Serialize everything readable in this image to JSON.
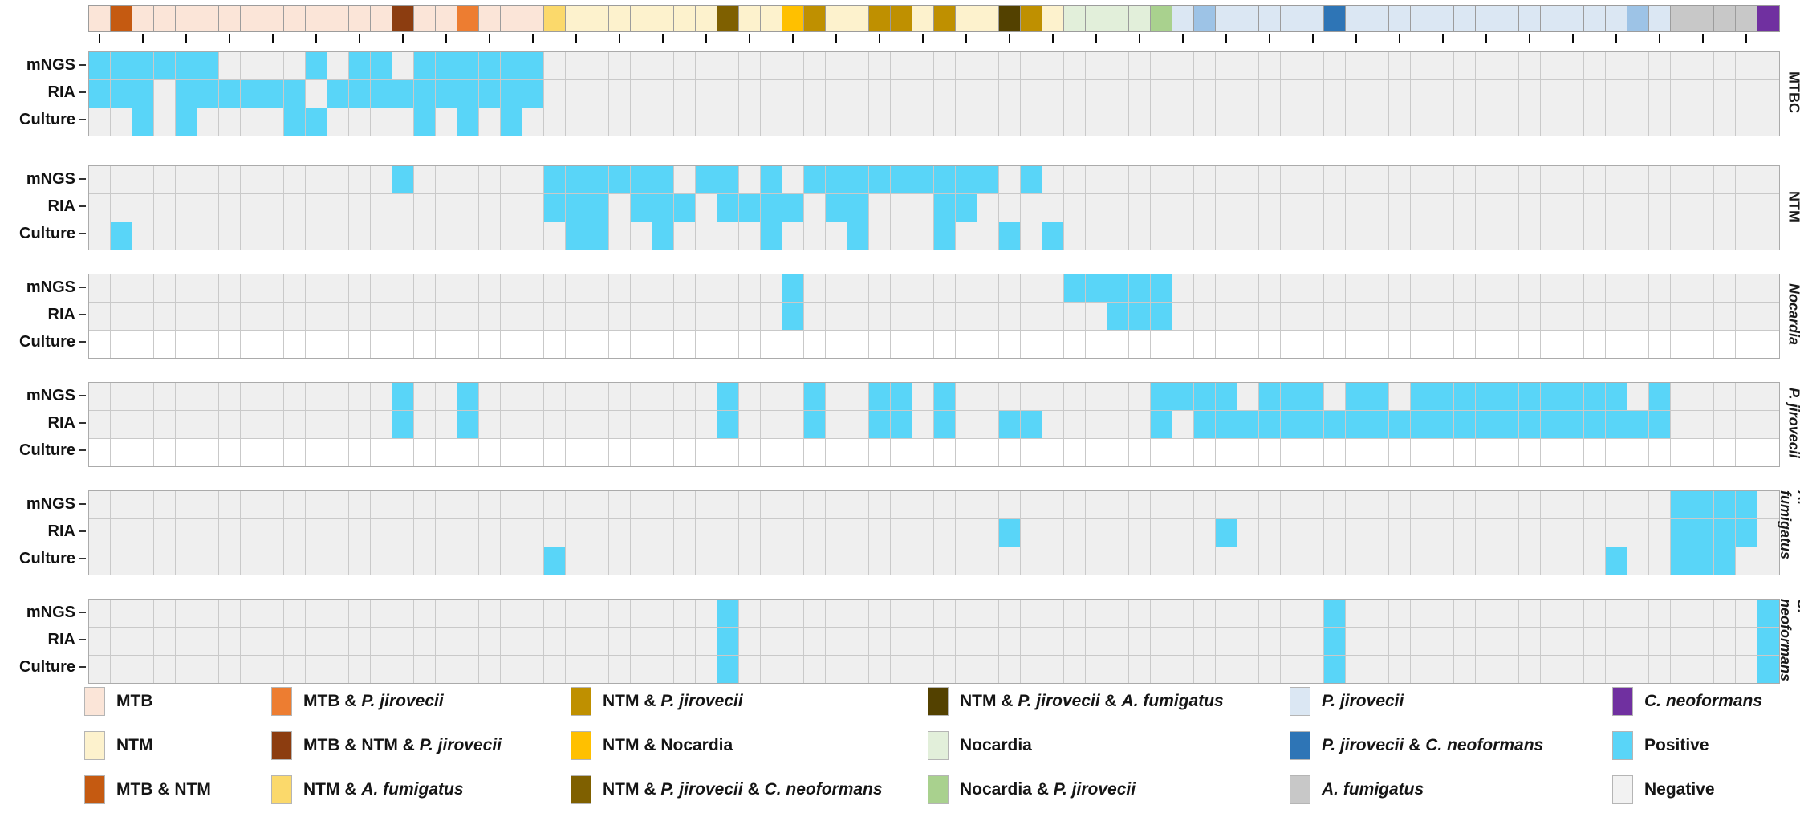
{
  "figure": {
    "background": "#ffffff"
  },
  "chart_data": {
    "type": "heatmap",
    "n_samples": 78,
    "row_labels": [
      "mNGS",
      "RIA",
      "Culture"
    ],
    "cell_states": {
      "positive": 1,
      "negative": 0,
      "not_tested": "blank"
    },
    "colors": {
      "positive": "#59d5f8",
      "negative": "#efefef",
      "not_tested": "#ffffff",
      "grid_line": "#c9c9c9",
      "panel_border": "#ababab",
      "tick": "#0a0a0a"
    },
    "palette": {
      "mtb": "#fbe5d8",
      "ntm": "#fdf2cd",
      "mtb_ntm": "#c55a11",
      "mtb_pj": "#ed7d31",
      "mtb_ntm_pj": "#8c3d10",
      "ntm_af": "#fbd96b",
      "ntm_pj": "#bf9000",
      "ntm_noc": "#ffc000",
      "ntm_pj_cn": "#7f6000",
      "ntm_pj_af": "#534100",
      "noc": "#e2efda",
      "noc_pj": "#a9d18e",
      "pj": "#dbe7f3",
      "pj_med": "#9dc3e6",
      "pj_cn": "#2e75b6",
      "af": "#c8c8c8",
      "cn": "#7030a0",
      "positive": "#59d5f8",
      "negative": "#f2f2f2"
    },
    "category_bar": [
      "mtb",
      "mtb_ntm",
      "mtb",
      "mtb",
      "mtb",
      "mtb",
      "mtb",
      "mtb",
      "mtb",
      "mtb",
      "mtb",
      "mtb",
      "mtb",
      "mtb",
      "mtb_ntm_pj",
      "mtb",
      "mtb",
      "mtb_pj",
      "mtb",
      "mtb",
      "mtb",
      "ntm_af",
      "ntm",
      "ntm",
      "ntm",
      "ntm",
      "ntm",
      "ntm",
      "ntm",
      "ntm_pj_cn",
      "ntm",
      "ntm",
      "ntm_noc",
      "ntm_pj",
      "ntm",
      "ntm",
      "ntm_pj",
      "ntm_pj",
      "ntm",
      "ntm_pj",
      "ntm",
      "ntm",
      "ntm_pj_af",
      "ntm_pj",
      "ntm",
      "noc",
      "noc",
      "noc",
      "noc",
      "noc_pj",
      "pj",
      "pj_med",
      "pj",
      "pj",
      "pj",
      "pj",
      "pj",
      "pj_cn",
      "pj",
      "pj",
      "pj",
      "pj",
      "pj",
      "pj",
      "pj",
      "pj",
      "pj",
      "pj",
      "pj",
      "pj",
      "pj",
      "pj_med",
      "pj",
      "af",
      "af",
      "af",
      "af",
      "cn"
    ],
    "panels": [
      {
        "id": "mtbc",
        "label": "MTBC",
        "italic": false,
        "rows": [
          {
            "label": "mNGS",
            "positives": [
              1,
              2,
              3,
              4,
              5,
              6,
              11,
              13,
              14,
              16,
              17,
              18,
              19,
              20,
              21
            ],
            "not_tested": false
          },
          {
            "label": "RIA",
            "positives": [
              1,
              2,
              3,
              5,
              6,
              7,
              8,
              9,
              10,
              12,
              13,
              14,
              15,
              16,
              17,
              18,
              19,
              20,
              21
            ],
            "not_tested": false
          },
          {
            "label": "Culture",
            "positives": [
              3,
              5,
              10,
              11,
              16,
              18,
              20
            ],
            "not_tested": false
          }
        ]
      },
      {
        "id": "ntm",
        "label": "NTM",
        "italic": false,
        "rows": [
          {
            "label": "mNGS",
            "positives": [
              15,
              22,
              23,
              24,
              25,
              26,
              27,
              29,
              30,
              32,
              34,
              35,
              36,
              37,
              38,
              39,
              40,
              41,
              42,
              44
            ],
            "not_tested": false
          },
          {
            "label": "RIA",
            "positives": [
              22,
              23,
              24,
              26,
              27,
              28,
              30,
              31,
              32,
              33,
              35,
              36,
              40,
              41
            ],
            "not_tested": false
          },
          {
            "label": "Culture",
            "positives": [
              2,
              23,
              24,
              27,
              32,
              36,
              40,
              43,
              45
            ],
            "not_tested": false
          }
        ]
      },
      {
        "id": "nocardia",
        "label": "Nocardia",
        "italic": true,
        "rows": [
          {
            "label": "mNGS",
            "positives": [
              33,
              46,
              47,
              48,
              49,
              50
            ],
            "not_tested": false
          },
          {
            "label": "RIA",
            "positives": [
              33,
              48,
              49,
              50
            ],
            "not_tested": false
          },
          {
            "label": "Culture",
            "positives": [],
            "not_tested": true
          }
        ]
      },
      {
        "id": "p-jirovecii",
        "label": "P. jirovecii",
        "italic": true,
        "rows": [
          {
            "label": "mNGS",
            "positives": [
              15,
              18,
              30,
              34,
              37,
              38,
              40,
              50,
              51,
              52,
              53,
              55,
              56,
              57,
              59,
              60,
              62,
              63,
              64,
              65,
              66,
              67,
              68,
              69,
              70,
              71,
              73
            ],
            "not_tested": false
          },
          {
            "label": "RIA",
            "positives": [
              15,
              18,
              30,
              34,
              37,
              38,
              40,
              43,
              44,
              50,
              52,
              53,
              54,
              55,
              56,
              57,
              58,
              59,
              60,
              61,
              62,
              63,
              64,
              65,
              66,
              67,
              68,
              69,
              70,
              71,
              72,
              73
            ],
            "not_tested": false
          },
          {
            "label": "Culture",
            "positives": [],
            "not_tested": true
          }
        ]
      },
      {
        "id": "a-fumigatus",
        "label": "A. fumigatus",
        "italic": true,
        "rows": [
          {
            "label": "mNGS",
            "positives": [
              74,
              75,
              76,
              77
            ],
            "not_tested": false
          },
          {
            "label": "RIA",
            "positives": [
              43,
              53,
              74,
              75,
              76,
              77
            ],
            "not_tested": false
          },
          {
            "label": "Culture",
            "positives": [
              22,
              71,
              74,
              75,
              76
            ],
            "not_tested": false
          }
        ]
      },
      {
        "id": "c-neoformans",
        "label": "C. neoformans",
        "italic": true,
        "rows": [
          {
            "label": "mNGS",
            "positives": [
              30,
              58,
              78
            ],
            "not_tested": false
          },
          {
            "label": "RIA",
            "positives": [
              30,
              58,
              78
            ],
            "not_tested": false
          },
          {
            "label": "Culture",
            "positives": [
              30,
              58,
              78
            ],
            "not_tested": false
          }
        ]
      }
    ],
    "legend": {
      "columns": [
        [
          {
            "key": "mtb",
            "segments": [
              {
                "t": "MTB",
                "i": false
              }
            ]
          },
          {
            "key": "ntm",
            "segments": [
              {
                "t": "NTM",
                "i": false
              }
            ]
          },
          {
            "key": "mtb_ntm",
            "segments": [
              {
                "t": "MTB & NTM",
                "i": false
              }
            ]
          }
        ],
        [
          {
            "key": "mtb_pj",
            "segments": [
              {
                "t": "MTB & ",
                "i": false
              },
              {
                "t": "P. jirovecii",
                "i": true
              }
            ]
          },
          {
            "key": "mtb_ntm_pj",
            "segments": [
              {
                "t": "MTB & NTM & ",
                "i": false
              },
              {
                "t": "P. jirovecii",
                "i": true
              }
            ]
          },
          {
            "key": "ntm_af",
            "segments": [
              {
                "t": "NTM & ",
                "i": false
              },
              {
                "t": "A. fumigatus",
                "i": true
              }
            ]
          }
        ],
        [
          {
            "key": "ntm_pj",
            "segments": [
              {
                "t": "NTM & ",
                "i": false
              },
              {
                "t": "P. jirovecii",
                "i": true
              }
            ]
          },
          {
            "key": "ntm_noc",
            "segments": [
              {
                "t": "NTM & Nocardia",
                "i": false
              }
            ]
          },
          {
            "key": "ntm_pj_cn",
            "segments": [
              {
                "t": "NTM & ",
                "i": false
              },
              {
                "t": "P. jirovecii",
                "i": true
              },
              {
                "t": " & ",
                "i": false
              },
              {
                "t": "C. neoformans",
                "i": true
              }
            ]
          }
        ],
        [
          {
            "key": "ntm_pj_af",
            "segments": [
              {
                "t": "NTM & ",
                "i": false
              },
              {
                "t": "P. jirovecii",
                "i": true
              },
              {
                "t": " & ",
                "i": false
              },
              {
                "t": "A. fumigatus",
                "i": true
              }
            ]
          },
          {
            "key": "noc",
            "segments": [
              {
                "t": "Nocardia",
                "i": false
              }
            ]
          },
          {
            "key": "noc_pj",
            "segments": [
              {
                "t": "Nocardia & ",
                "i": false
              },
              {
                "t": "P. jirovecii",
                "i": true
              }
            ]
          }
        ],
        [
          {
            "key": "pj",
            "segments": [
              {
                "t": "P. jirovecii",
                "i": true
              }
            ]
          },
          {
            "key": "pj_cn",
            "segments": [
              {
                "t": "P. jirovecii",
                "i": true
              },
              {
                "t": " & ",
                "i": false
              },
              {
                "t": "C. neoformans",
                "i": true
              }
            ]
          },
          {
            "key": "af",
            "segments": [
              {
                "t": "A. fumigatus",
                "i": true
              }
            ]
          }
        ],
        [
          {
            "key": "cn",
            "segments": [
              {
                "t": "C. neoformans",
                "i": true
              }
            ]
          },
          {
            "key": "positive",
            "segments": [
              {
                "t": "Positive",
                "i": false
              }
            ]
          },
          {
            "key": "negative",
            "segments": [
              {
                "t": "Negative",
                "i": false
              }
            ]
          }
        ]
      ]
    }
  }
}
